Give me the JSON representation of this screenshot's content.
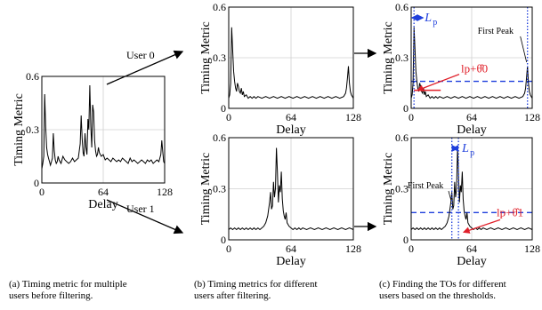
{
  "chart_data": [
    {
      "type": "line",
      "xlabel": "Delay",
      "ylabel": "Timing Metric",
      "xticks": [
        "0",
        "64",
        "128"
      ],
      "yticks": [
        "0",
        "0.3",
        "0.6"
      ],
      "xlim": [
        0,
        128
      ],
      "ylim": [
        0,
        0.6
      ],
      "grid": true,
      "series": [
        {
          "x": [
            0,
            1,
            2,
            3,
            4,
            5,
            6,
            7,
            8,
            9,
            10,
            11,
            12,
            13,
            14,
            15,
            16,
            17,
            18,
            20,
            22,
            24,
            26,
            28,
            30,
            32,
            34,
            36,
            38,
            40,
            41,
            42,
            43,
            44,
            45,
            46,
            47,
            48,
            49,
            50,
            51,
            52,
            53,
            54,
            55,
            56,
            57,
            58,
            59,
            60,
            62,
            64,
            66,
            68,
            70,
            72,
            74,
            76,
            78,
            80,
            82,
            84,
            86,
            88,
            90,
            92,
            94,
            96,
            98,
            100,
            102,
            104,
            106,
            108,
            110,
            112,
            114,
            116,
            118,
            120,
            122,
            124,
            125,
            126,
            127,
            128
          ],
          "y": [
            0.08,
            0.11,
            0.15,
            0.5,
            0.32,
            0.2,
            0.16,
            0.14,
            0.12,
            0.1,
            0.12,
            0.14,
            0.28,
            0.18,
            0.13,
            0.11,
            0.12,
            0.15,
            0.13,
            0.11,
            0.15,
            0.13,
            0.12,
            0.11,
            0.12,
            0.14,
            0.12,
            0.13,
            0.14,
            0.22,
            0.38,
            0.25,
            0.17,
            0.15,
            0.28,
            0.2,
            0.16,
            0.36,
            0.3,
            0.55,
            0.32,
            0.2,
            0.44,
            0.4,
            0.24,
            0.18,
            0.15,
            0.16,
            0.2,
            0.17,
            0.15,
            0.16,
            0.13,
            0.14,
            0.13,
            0.12,
            0.14,
            0.13,
            0.12,
            0.13,
            0.12,
            0.14,
            0.13,
            0.12,
            0.11,
            0.14,
            0.12,
            0.13,
            0.12,
            0.11,
            0.12,
            0.13,
            0.12,
            0.11,
            0.13,
            0.12,
            0.13,
            0.11,
            0.12,
            0.13,
            0.12,
            0.16,
            0.24,
            0.18,
            0.12,
            0.11
          ]
        }
      ],
      "caption": [
        "(a) Timing metric for multiple",
        "users before filtering."
      ]
    },
    {
      "type": "line",
      "xlabel": "Delay",
      "ylabel": "Timing Metric",
      "xticks": [
        "0",
        "64",
        "128"
      ],
      "yticks": [
        "0",
        "0.3",
        "0.6"
      ],
      "xlim": [
        0,
        128
      ],
      "ylim": [
        0,
        0.6
      ],
      "grid": true,
      "series": [
        {
          "x": [
            0,
            1,
            2,
            3,
            4,
            5,
            6,
            7,
            8,
            9,
            10,
            11,
            12,
            13,
            14,
            15,
            16,
            18,
            20,
            22,
            24,
            26,
            28,
            30,
            34,
            38,
            42,
            46,
            50,
            54,
            58,
            62,
            66,
            70,
            74,
            78,
            82,
            86,
            90,
            94,
            98,
            102,
            106,
            110,
            114,
            118,
            120,
            121,
            122,
            123,
            124,
            125,
            126,
            127,
            128
          ],
          "y": [
            0.06,
            0.08,
            0.15,
            0.48,
            0.35,
            0.22,
            0.16,
            0.12,
            0.1,
            0.15,
            0.13,
            0.1,
            0.09,
            0.12,
            0.08,
            0.1,
            0.07,
            0.08,
            0.06,
            0.07,
            0.06,
            0.07,
            0.06,
            0.07,
            0.06,
            0.07,
            0.06,
            0.07,
            0.06,
            0.07,
            0.06,
            0.07,
            0.06,
            0.07,
            0.06,
            0.07,
            0.06,
            0.07,
            0.06,
            0.07,
            0.06,
            0.07,
            0.06,
            0.07,
            0.06,
            0.07,
            0.09,
            0.12,
            0.18,
            0.25,
            0.15,
            0.1,
            0.08,
            0.07,
            0.06
          ]
        }
      ],
      "caption": [
        "(b) Timing metrics for different",
        "users after filtering."
      ]
    },
    {
      "type": "line",
      "xlabel": "Delay",
      "ylabel": "Timing Metric",
      "xticks": [
        "0",
        "64",
        "128"
      ],
      "yticks": [
        "0",
        "0.3",
        "0.6"
      ],
      "xlim": [
        0,
        128
      ],
      "ylim": [
        0,
        0.6
      ],
      "grid": true,
      "series": [
        {
          "x": [
            0,
            2,
            4,
            6,
            8,
            10,
            12,
            14,
            16,
            18,
            20,
            22,
            24,
            26,
            28,
            30,
            32,
            34,
            36,
            38,
            40,
            42,
            43,
            44,
            45,
            46,
            47,
            48,
            49,
            50,
            51,
            52,
            53,
            54,
            55,
            56,
            57,
            58,
            59,
            60,
            62,
            64,
            66,
            68,
            70,
            72,
            74,
            76,
            80,
            84,
            88,
            92,
            96,
            100,
            104,
            108,
            112,
            116,
            120,
            124,
            128
          ],
          "y": [
            0.06,
            0.07,
            0.06,
            0.07,
            0.06,
            0.07,
            0.06,
            0.07,
            0.06,
            0.07,
            0.06,
            0.07,
            0.06,
            0.07,
            0.06,
            0.07,
            0.06,
            0.07,
            0.08,
            0.1,
            0.14,
            0.22,
            0.28,
            0.18,
            0.2,
            0.34,
            0.25,
            0.3,
            0.54,
            0.4,
            0.22,
            0.32,
            0.28,
            0.4,
            0.24,
            0.17,
            0.14,
            0.12,
            0.16,
            0.1,
            0.08,
            0.07,
            0.06,
            0.07,
            0.06,
            0.07,
            0.06,
            0.07,
            0.06,
            0.07,
            0.06,
            0.07,
            0.06,
            0.07,
            0.06,
            0.07,
            0.06,
            0.07,
            0.06,
            0.07,
            0.06
          ]
        }
      ],
      "caption": []
    },
    {
      "type": "line",
      "xlabel": "Delay",
      "ylabel": "Timing Metric",
      "xticks": [
        "0",
        "64",
        "128"
      ],
      "yticks": [
        "0",
        "0.3",
        "0.6"
      ],
      "xlim": [
        0,
        128
      ],
      "ylim": [
        0,
        0.6
      ],
      "grid": true,
      "series": [
        {
          "x": [
            0,
            1,
            2,
            3,
            4,
            5,
            6,
            7,
            8,
            9,
            10,
            11,
            12,
            13,
            14,
            15,
            16,
            18,
            20,
            22,
            24,
            26,
            28,
            30,
            34,
            38,
            42,
            46,
            50,
            54,
            58,
            62,
            66,
            70,
            74,
            78,
            82,
            86,
            90,
            94,
            98,
            102,
            106,
            110,
            114,
            118,
            120,
            121,
            122,
            123,
            124,
            125,
            126,
            127,
            128
          ],
          "y": [
            0.06,
            0.08,
            0.15,
            0.48,
            0.35,
            0.22,
            0.16,
            0.12,
            0.1,
            0.15,
            0.13,
            0.1,
            0.09,
            0.12,
            0.08,
            0.1,
            0.07,
            0.08,
            0.06,
            0.07,
            0.06,
            0.07,
            0.06,
            0.07,
            0.06,
            0.07,
            0.06,
            0.07,
            0.06,
            0.07,
            0.06,
            0.07,
            0.06,
            0.07,
            0.06,
            0.07,
            0.06,
            0.07,
            0.06,
            0.07,
            0.06,
            0.07,
            0.06,
            0.07,
            0.06,
            0.07,
            0.09,
            0.12,
            0.18,
            0.25,
            0.15,
            0.1,
            0.08,
            0.07,
            0.06
          ]
        }
      ],
      "threshold": 0.16,
      "markers_x": [
        3,
        123
      ],
      "annotations": {
        "lp": "L",
        "lp_sub": "p",
        "theta_l": "l",
        "theta_sub": "p",
        "theta_plus": "+",
        "theta_sym": "θ̂",
        "theta_sup": "0",
        "first_peak": "First Peak"
      },
      "caption": [
        "(c) Finding the TOs for different",
        "users based on the thresholds."
      ]
    },
    {
      "type": "line",
      "xlabel": "Delay",
      "ylabel": "Timing Metric",
      "xticks": [
        "0",
        "64",
        "128"
      ],
      "yticks": [
        "0",
        "0.3",
        "0.6"
      ],
      "xlim": [
        0,
        128
      ],
      "ylim": [
        0,
        0.6
      ],
      "grid": true,
      "series": [
        {
          "x": [
            0,
            2,
            4,
            6,
            8,
            10,
            12,
            14,
            16,
            18,
            20,
            22,
            24,
            26,
            28,
            30,
            32,
            34,
            36,
            38,
            40,
            42,
            43,
            44,
            45,
            46,
            47,
            48,
            49,
            50,
            51,
            52,
            53,
            54,
            55,
            56,
            57,
            58,
            59,
            60,
            62,
            64,
            66,
            68,
            70,
            72,
            74,
            76,
            80,
            84,
            88,
            92,
            96,
            100,
            104,
            108,
            112,
            116,
            120,
            124,
            128
          ],
          "y": [
            0.06,
            0.07,
            0.06,
            0.07,
            0.06,
            0.07,
            0.06,
            0.07,
            0.06,
            0.07,
            0.06,
            0.07,
            0.06,
            0.07,
            0.06,
            0.07,
            0.06,
            0.07,
            0.08,
            0.1,
            0.14,
            0.22,
            0.28,
            0.18,
            0.2,
            0.34,
            0.25,
            0.3,
            0.54,
            0.4,
            0.22,
            0.32,
            0.28,
            0.4,
            0.24,
            0.17,
            0.14,
            0.12,
            0.16,
            0.1,
            0.08,
            0.07,
            0.06,
            0.07,
            0.06,
            0.07,
            0.06,
            0.07,
            0.06,
            0.07,
            0.06,
            0.07,
            0.06,
            0.07,
            0.06,
            0.07,
            0.06,
            0.07,
            0.06,
            0.07,
            0.06
          ]
        }
      ],
      "threshold": 0.16,
      "markers_x": [
        43,
        50
      ],
      "annotations": {
        "lp": "L",
        "lp_sub": "p",
        "theta_l": "l",
        "theta_sub": "p",
        "theta_plus": "+",
        "theta_sym": "θ̂",
        "theta_sup": "1",
        "first_peak": "First Peak"
      },
      "caption": []
    }
  ],
  "flow_labels": {
    "user0": "User 0",
    "user1": "User 1"
  },
  "colors": {
    "line": "#000000",
    "grid": "#d0d0d0",
    "marker": "#1f3fdc",
    "annotation": "#e0202a"
  }
}
